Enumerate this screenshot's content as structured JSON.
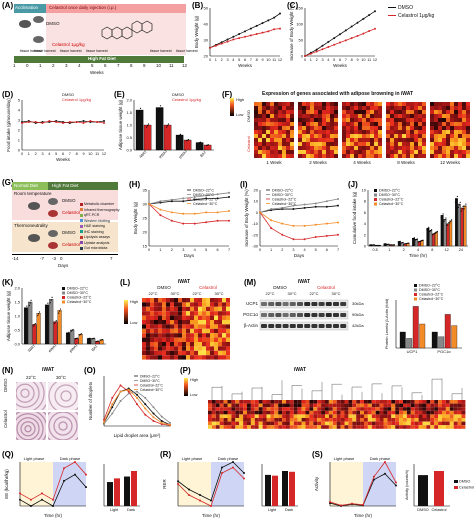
{
  "panel_labels": [
    "(A)",
    "(B)",
    "(C)",
    "(D)",
    "(E)",
    "(F)",
    "(G)",
    "(H)",
    "(I)",
    "(J)",
    "(K)",
    "(L)",
    "(M)",
    "(N)",
    "(O)",
    "(P)",
    "(Q)",
    "(R)",
    "(S)"
  ],
  "A": {
    "acclimation": "Acclimation",
    "treatment": "Celastrol once daily injection (i.p.)",
    "dmso": "DMSO",
    "celastrol": "Celastrol 1μg/kg",
    "tissue_harvest": "tissue harvest",
    "diet": "High Fat Diet",
    "weeks_label": "Weeks",
    "ticks": [
      "1",
      "0",
      "1",
      "2",
      "3",
      "4",
      "5",
      "6",
      "7",
      "8",
      "9",
      "10",
      "11",
      "12"
    ]
  },
  "legend_dmso_cel": {
    "dmso": "DMSO",
    "cel": "Celastrol 1μg/kg"
  },
  "legend_dmso_cel_short": {
    "dmso": "DMSO",
    "cel": "Celastrol"
  },
  "legend_four": [
    "DMSO~22°C",
    "DMSO~30°C",
    "Celastrol~22°C",
    "Celastrol~30°C"
  ],
  "legend_four_short": [
    "DMSO~22°C",
    "DMSO~30°C",
    "Celastrol~22°C",
    "Celastrol~30°C"
  ],
  "colors": {
    "dmso": "#111111",
    "cel": "#d62728",
    "cel30": "#f28c28",
    "dmso30": "#888888",
    "bg_pink": "#f9d6d6",
    "bg_blue": "#cfe0f5",
    "arrow_teal": "#4a9aa6",
    "arrow_green": "#6aa84f"
  },
  "B": {
    "ylabel": "Body Weight (g)",
    "xlabel": "Weeks",
    "yticks": [
      "20",
      "30",
      "40",
      "50"
    ],
    "xticks": [
      "0",
      "1",
      "2",
      "3",
      "4",
      "5",
      "6",
      "7",
      "8",
      "9",
      "10",
      "11",
      "12"
    ]
  },
  "C": {
    "ylabel": "Increase of Body Weight (%)",
    "xlabel": "Weeks",
    "yticks": [
      "0",
      "50",
      "100",
      "150"
    ]
  },
  "D": {
    "ylabel": "Food intake (g/mouse/day)",
    "xlabel": "Weeks",
    "yticks": [
      "0",
      "1",
      "2",
      "3",
      "4",
      "5"
    ]
  },
  "E": {
    "ylabel": "Adipose tissue weight (g)",
    "yticks": [
      "0.0",
      "0.5",
      "1.0",
      "1.5",
      "2.0"
    ],
    "categories": [
      "iWAT",
      "eWAT",
      "pWAT",
      "BAT"
    ]
  },
  "F": {
    "title": "Expression of genes associated with adipose browning in iWAT",
    "scale_high": "High",
    "scale_low": "Low",
    "rows": [
      "DMSO",
      "Celastrol"
    ],
    "cols": [
      "1 Week",
      "2 Weeks",
      "4 Weeks",
      "8 Weeks",
      "12 Weeks"
    ]
  },
  "G": {
    "normal_diet": "Normal Diet",
    "high_fat_diet": "High Fat Diet",
    "room_temp": "Room temperature",
    "thermo": "Thermoneutrality",
    "dmso": "DMSO",
    "celastrol": "Celastrol",
    "days_label": "Days",
    "ticks": [
      "-14",
      "-7",
      "-3",
      "0",
      "7"
    ],
    "assays": [
      "Metabolic chamber",
      "Infrared thermography",
      "qRT-PCR",
      "Western blotting",
      "H&E staining",
      "IHC staining",
      "Lipolysis assays",
      "Uptake analysis",
      "Gut microbiota"
    ]
  },
  "H": {
    "ylabel": "Body Weight (g)",
    "xlabel": "Days",
    "yticks": [
      "15",
      "20",
      "25",
      "30",
      "35"
    ],
    "xticks": [
      "0",
      "1",
      "2",
      "3",
      "4",
      "5",
      "6",
      "7"
    ]
  },
  "I": {
    "ylabel": "Increase of Body Weight (%)",
    "xlabel": "Days",
    "yticks": [
      "-30",
      "-20",
      "-10",
      "0",
      "10",
      "20"
    ]
  },
  "J": {
    "ylabel": "Cumulative food intake (g)",
    "xlabel": "Time (hr)",
    "yticks": [
      "0",
      "2",
      "4",
      "6",
      "8",
      "10"
    ],
    "categories": [
      "0.5",
      "1",
      "2",
      "4",
      "8",
      "12",
      "24"
    ]
  },
  "K": {
    "ylabel": "Adipose tissue weight (g)",
    "yticks": [
      "0.0",
      "0.5",
      "1.0",
      "1.5",
      "2.0"
    ],
    "categories": [
      "iWAT",
      "eWAT",
      "pWAT",
      "BAT"
    ]
  },
  "L": {
    "title": "iWAT",
    "groups": [
      "DMSO",
      "Celastrol"
    ],
    "temps": [
      "22°C",
      "30°C",
      "22°C",
      "30°C"
    ],
    "scale_high": "High",
    "scale_low": "Low"
  },
  "M": {
    "title": "iWAT",
    "groups": [
      "DMSO",
      "Celastrol"
    ],
    "temps": [
      "22°C",
      "30°C",
      "22°C",
      "30°C"
    ],
    "bands": [
      "UCP1",
      "PGC1α",
      "β-Actin"
    ],
    "kda": [
      "30kDa",
      "90kDa",
      "42kDa"
    ],
    "ylabel": "Protein Levels/ β-Actin (fold)",
    "categories": [
      "UCP1",
      "PGC1α"
    ]
  },
  "N": {
    "title": "iWAT",
    "temps": [
      "22°C",
      "30°C"
    ],
    "rows": [
      "DMSO",
      "Celastrol"
    ],
    "side": "H&E"
  },
  "O": {
    "ylabel": "Number of droplets",
    "xlabel": "Lipid droplet area (μm²)"
  },
  "P": {
    "title": "iWAT",
    "scale_high": "High",
    "scale_low": "Low"
  },
  "Q": {
    "ylabel": "EE (kcal/hr/kg)",
    "xlabel": "Time (hr)",
    "light": "Light phase",
    "dark": "Dark phase",
    "bar_cats": [
      "Light",
      "Dark"
    ]
  },
  "R": {
    "ylabel": "RER",
    "xlabel": "Time (hr)",
    "light": "Light phase",
    "dark": "Dark phase",
    "bar_cats": [
      "Light",
      "Dark"
    ]
  },
  "S": {
    "ylabel": "Activity",
    "xlabel": "Time (hr)",
    "light": "Light phase",
    "dark": "Dark phase",
    "bar_ylabel": "Activity (counts/h)"
  },
  "chart_data": [
    {
      "type": "line",
      "panel": "B",
      "x": [
        0,
        1,
        2,
        3,
        4,
        5,
        6,
        7,
        8,
        9,
        10,
        11,
        12
      ],
      "series": [
        {
          "name": "DMSO",
          "values": [
            21,
            23,
            25,
            27,
            29,
            31,
            33,
            35,
            37,
            39,
            41,
            43,
            46
          ]
        },
        {
          "name": "Celastrol 1μg/kg",
          "values": [
            21,
            22.5,
            24,
            25.5,
            27,
            28,
            29,
            30,
            31,
            32,
            33,
            34.5,
            35
          ]
        }
      ],
      "ylim": [
        15,
        50
      ]
    },
    {
      "type": "line",
      "panel": "C",
      "x": [
        0,
        1,
        2,
        3,
        4,
        5,
        6,
        7,
        8,
        9,
        10,
        11,
        12
      ],
      "series": [
        {
          "name": "DMSO",
          "values": [
            0,
            10,
            20,
            32,
            44,
            56,
            68,
            80,
            92,
            104,
            116,
            128,
            140
          ]
        },
        {
          "name": "Celastrol 1μg/kg",
          "values": [
            0,
            7,
            14,
            21,
            28,
            35,
            42,
            49,
            56,
            63,
            70,
            78,
            85
          ]
        }
      ],
      "ylim": [
        0,
        150
      ]
    },
    {
      "type": "line",
      "panel": "D",
      "x": [
        0,
        1,
        2,
        3,
        4,
        5,
        6,
        7,
        8,
        9,
        10,
        11,
        12
      ],
      "series": [
        {
          "name": "DMSO",
          "values": [
            2.8,
            2.9,
            2.7,
            2.8,
            2.8,
            2.9,
            2.8,
            2.7,
            2.8,
            2.9,
            2.8,
            2.8,
            2.9
          ]
        },
        {
          "name": "Celastrol 1μg/kg",
          "values": [
            2.7,
            2.8,
            2.8,
            2.7,
            2.9,
            2.8,
            2.7,
            2.8,
            2.8,
            2.7,
            2.9,
            2.8,
            2.7
          ]
        }
      ],
      "ylim": [
        0,
        5
      ]
    },
    {
      "type": "bar",
      "panel": "E",
      "categories": [
        "iWAT",
        "eWAT",
        "pWAT",
        "BAT"
      ],
      "series": [
        {
          "name": "DMSO",
          "values": [
            1.6,
            1.7,
            0.6,
            0.3
          ]
        },
        {
          "name": "Celastrol 1μg/kg",
          "values": [
            1.0,
            1.0,
            0.4,
            0.2
          ]
        }
      ],
      "ylim": [
        0,
        2
      ]
    },
    {
      "type": "line",
      "panel": "H",
      "x": [
        0,
        1,
        2,
        3,
        4,
        5,
        6,
        7
      ],
      "series": [
        {
          "name": "DMSO~22°C",
          "values": [
            30,
            30.5,
            31,
            31,
            31.5,
            32,
            32,
            32.5
          ]
        },
        {
          "name": "DMSO~30°C",
          "values": [
            30,
            31,
            31.5,
            32,
            32.5,
            33,
            33.5,
            34
          ]
        },
        {
          "name": "Celastrol~22°C",
          "values": [
            30,
            26,
            24,
            23,
            23,
            23.5,
            24,
            24
          ]
        },
        {
          "name": "Celastrol~30°C",
          "values": [
            30,
            28,
            27,
            26.5,
            26.5,
            27,
            27,
            27.5
          ]
        }
      ],
      "ylim": [
        15,
        35
      ]
    },
    {
      "type": "line",
      "panel": "I",
      "x": [
        0,
        1,
        2,
        3,
        4,
        5,
        6,
        7
      ],
      "series": [
        {
          "name": "DMSO~22°C",
          "values": [
            0,
            2,
            3,
            3,
            4,
            5,
            5,
            6
          ]
        },
        {
          "name": "DMSO~30°C",
          "values": [
            0,
            3,
            4,
            6,
            7,
            8,
            10,
            12
          ]
        },
        {
          "name": "Celastrol~22°C",
          "values": [
            0,
            -14,
            -20,
            -24,
            -24,
            -22,
            -21,
            -20
          ]
        },
        {
          "name": "Celastrol~30°C",
          "values": [
            0,
            -7,
            -10,
            -12,
            -12,
            -11,
            -10,
            -9
          ]
        }
      ],
      "ylim": [
        -30,
        20
      ]
    },
    {
      "type": "bar",
      "panel": "J",
      "categories": [
        "0.5",
        "1",
        "2",
        "4",
        "8",
        "12",
        "24"
      ],
      "series": [
        {
          "name": "DMSO~22°C",
          "values": [
            0.2,
            0.4,
            0.8,
            1.4,
            3.2,
            5.5,
            8.5
          ]
        },
        {
          "name": "DMSO~30°C",
          "values": [
            0.2,
            0.3,
            0.6,
            1.2,
            2.8,
            4.8,
            7.5
          ]
        },
        {
          "name": "Celastrol~22°C",
          "values": [
            0.1,
            0.2,
            0.4,
            0.8,
            2.2,
            4.0,
            6.8
          ]
        },
        {
          "name": "Celastrol~30°C",
          "values": [
            0.1,
            0.2,
            0.5,
            1.0,
            2.5,
            4.5,
            7.2
          ]
        }
      ],
      "ylim": [
        0,
        10
      ]
    },
    {
      "type": "bar",
      "panel": "K",
      "categories": [
        "iWAT",
        "eWAT",
        "pWAT",
        "BAT"
      ],
      "series": [
        {
          "name": "DMSO~22°C",
          "values": [
            1.3,
            1.4,
            0.4,
            0.2
          ]
        },
        {
          "name": "DMSO~30°C",
          "values": [
            1.5,
            1.6,
            0.5,
            0.2
          ]
        },
        {
          "name": "Celastrol~22°C",
          "values": [
            0.7,
            0.8,
            0.2,
            0.1
          ]
        },
        {
          "name": "Celastrol~30°C",
          "values": [
            1.1,
            1.2,
            0.35,
            0.15
          ]
        }
      ],
      "ylim": [
        0,
        2
      ]
    },
    {
      "type": "bar",
      "panel": "M",
      "categories": [
        "UCP1",
        "PGC1α"
      ],
      "series": [
        {
          "name": "DMSO~22°C",
          "values": [
            1.0,
            1.0
          ]
        },
        {
          "name": "DMSO~30°C",
          "values": [
            0.6,
            0.7
          ]
        },
        {
          "name": "Celastrol~22°C",
          "values": [
            2.6,
            2.1
          ]
        },
        {
          "name": "Celastrol~30°C",
          "values": [
            1.5,
            1.4
          ]
        }
      ],
      "ylim": [
        0,
        3
      ]
    },
    {
      "type": "line",
      "panel": "O",
      "x": [
        0,
        500,
        1000,
        1500,
        2000,
        2500,
        3000,
        3500,
        4000
      ],
      "series": [
        {
          "name": "DMSO~22°C",
          "values": [
            5,
            30,
            55,
            60,
            50,
            35,
            20,
            8,
            2
          ]
        },
        {
          "name": "DMSO~30°C",
          "values": [
            3,
            20,
            40,
            52,
            55,
            45,
            30,
            15,
            5
          ]
        },
        {
          "name": "Celastrol~22°C",
          "values": [
            10,
            45,
            65,
            55,
            35,
            18,
            8,
            3,
            1
          ]
        },
        {
          "name": "Celastrol~30°C",
          "values": [
            6,
            35,
            55,
            58,
            45,
            28,
            14,
            5,
            2
          ]
        }
      ],
      "ylim": [
        0,
        80
      ]
    },
    {
      "type": "line",
      "panel": "Q",
      "x": [
        0,
        4,
        8,
        12,
        16,
        20,
        24
      ],
      "series": [
        {
          "name": "DMSO",
          "values": [
            14,
            13,
            14,
            13,
            17,
            18,
            16
          ]
        },
        {
          "name": "Celastrol",
          "values": [
            15,
            14,
            15,
            14,
            19,
            20,
            18
          ]
        }
      ]
    },
    {
      "type": "bar",
      "panel": "Q-bar",
      "categories": [
        "Light",
        "Dark"
      ],
      "series": [
        {
          "name": "DMSO",
          "values": [
            13,
            16
          ]
        },
        {
          "name": "Celastrol",
          "values": [
            15,
            19
          ]
        }
      ]
    },
    {
      "type": "line",
      "panel": "R",
      "x": [
        0,
        4,
        8,
        12,
        16,
        20,
        24
      ],
      "series": [
        {
          "name": "DMSO",
          "values": [
            0.85,
            0.82,
            0.8,
            0.78,
            0.9,
            0.92,
            0.88
          ]
        },
        {
          "name": "Celastrol",
          "values": [
            0.84,
            0.8,
            0.78,
            0.76,
            0.88,
            0.9,
            0.86
          ]
        }
      ]
    },
    {
      "type": "bar",
      "panel": "R-bar",
      "categories": [
        "Light",
        "Dark"
      ],
      "series": [
        {
          "name": "DMSO",
          "values": [
            0.8,
            0.9
          ]
        },
        {
          "name": "Celastrol",
          "values": [
            0.78,
            0.88
          ]
        }
      ]
    },
    {
      "type": "line",
      "panel": "S",
      "x": [
        0,
        4,
        8,
        12,
        16,
        20,
        24
      ],
      "series": [
        {
          "name": "DMSO",
          "values": [
            200,
            150,
            180,
            160,
            600,
            700,
            500
          ]
        },
        {
          "name": "Celastrol",
          "values": [
            220,
            160,
            190,
            170,
            650,
            900,
            550
          ]
        }
      ]
    },
    {
      "type": "bar",
      "panel": "S-bar",
      "categories": [
        "DMSO",
        "Celastrol"
      ],
      "series": [
        {
          "name": "Activity",
          "values": [
            300,
            340
          ]
        }
      ]
    }
  ]
}
